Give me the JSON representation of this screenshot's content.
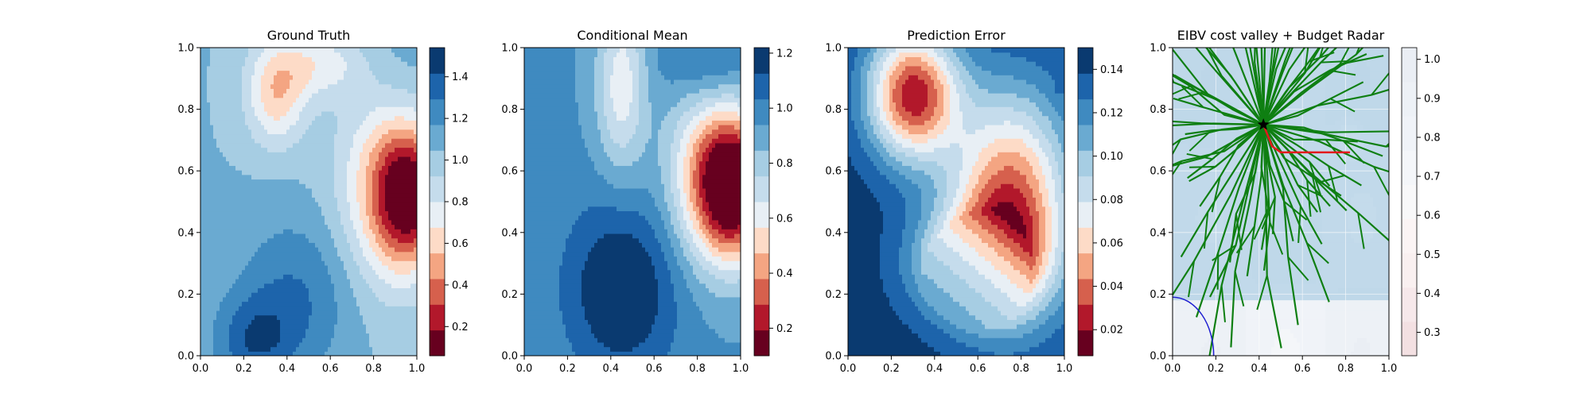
{
  "chart_data": [
    {
      "type": "heatmap",
      "title": "Ground Truth",
      "xlabel": "",
      "ylabel": "",
      "xlim": [
        0,
        1
      ],
      "ylim": [
        0,
        1
      ],
      "xticks": [
        "0.0",
        "0.2",
        "0.4",
        "0.6",
        "0.8",
        "1.0"
      ],
      "yticks": [
        "0.0",
        "0.2",
        "0.4",
        "0.6",
        "0.8",
        "1.0"
      ],
      "colormap": "RdBu (filled contour)",
      "colorbar": {
        "range": [
          0.06,
          1.54
        ],
        "ticks": [
          {
            "v": 0.2,
            "label": "0.2"
          },
          {
            "v": 0.4,
            "label": "0.4"
          },
          {
            "v": 0.6,
            "label": "0.6"
          },
          {
            "v": 0.8,
            "label": "0.8"
          },
          {
            "v": 1.0,
            "label": "1.0"
          },
          {
            "v": 1.2,
            "label": "1.2"
          },
          {
            "v": 1.4,
            "label": "1.4"
          }
        ],
        "levels": [
          "#67001f",
          "#b2182b",
          "#d6604d",
          "#f4a582",
          "#fddbc7",
          "#e8eff5",
          "#c5dcec",
          "#a6cde3",
          "#6aaad1",
          "#3f8ac0",
          "#1d64ab",
          "#0a3a70"
        ]
      },
      "grid": false,
      "legend": "none"
    },
    {
      "type": "heatmap",
      "title": "Conditional Mean",
      "xlabel": "",
      "ylabel": "",
      "xlim": [
        0,
        1
      ],
      "ylim": [
        0,
        1
      ],
      "xticks": [
        "0.0",
        "0.2",
        "0.4",
        "0.6",
        "0.8",
        "1.0"
      ],
      "yticks": [
        "0.0",
        "0.2",
        "0.4",
        "0.6",
        "0.8",
        "1.0"
      ],
      "colormap": "RdBu (filled contour)",
      "colorbar": {
        "range": [
          0.1,
          1.22
        ],
        "ticks": [
          {
            "v": 0.2,
            "label": "0.2"
          },
          {
            "v": 0.4,
            "label": "0.4"
          },
          {
            "v": 0.6,
            "label": "0.6"
          },
          {
            "v": 0.8,
            "label": "0.8"
          },
          {
            "v": 1.0,
            "label": "1.0"
          },
          {
            "v": 1.2,
            "label": "1.2"
          }
        ],
        "levels": [
          "#67001f",
          "#b2182b",
          "#d6604d",
          "#f4a582",
          "#fddbc7",
          "#e8eff5",
          "#c5dcec",
          "#a6cde3",
          "#6aaad1",
          "#3f8ac0",
          "#1d64ab",
          "#0a3a70"
        ]
      },
      "grid": false,
      "legend": "none"
    },
    {
      "type": "heatmap",
      "title": "Prediction Error",
      "xlabel": "",
      "ylabel": "",
      "xlim": [
        0,
        1
      ],
      "ylim": [
        0,
        1
      ],
      "xticks": [
        "0.0",
        "0.2",
        "0.4",
        "0.6",
        "0.8",
        "1.0"
      ],
      "yticks": [
        "0.0",
        "0.2",
        "0.4",
        "0.6",
        "0.8",
        "1.0"
      ],
      "colormap": "RdBu (filled contour)",
      "colorbar": {
        "range": [
          0.008,
          0.15
        ],
        "ticks": [
          {
            "v": 0.02,
            "label": "0.02"
          },
          {
            "v": 0.04,
            "label": "0.04"
          },
          {
            "v": 0.06,
            "label": "0.06"
          },
          {
            "v": 0.08,
            "label": "0.08"
          },
          {
            "v": 0.1,
            "label": "0.10"
          },
          {
            "v": 0.12,
            "label": "0.12"
          },
          {
            "v": 0.14,
            "label": "0.14"
          }
        ],
        "levels": [
          "#67001f",
          "#b2182b",
          "#d6604d",
          "#f4a582",
          "#fddbc7",
          "#e8eff5",
          "#c5dcec",
          "#a6cde3",
          "#6aaad1",
          "#3f8ac0",
          "#1d64ab",
          "#0a3a70"
        ]
      },
      "grid": false,
      "legend": "none"
    },
    {
      "type": "heatmap",
      "title": "EIBV cost valley + Budget Radar",
      "xlabel": "",
      "ylabel": "",
      "xlim": [
        0,
        1
      ],
      "ylim": [
        0,
        1
      ],
      "xticks": [
        "0.0",
        "0.2",
        "0.4",
        "0.6",
        "0.8",
        "1.0"
      ],
      "yticks": [
        "0.0",
        "0.2",
        "0.4",
        "0.6",
        "0.8",
        "1.0"
      ],
      "colormap": "RdBu (filled contour, faded)",
      "colorbar": {
        "range": [
          0.24,
          1.03
        ],
        "ticks": [
          {
            "v": 0.3,
            "label": "0.3"
          },
          {
            "v": 0.4,
            "label": "0.4"
          },
          {
            "v": 0.5,
            "label": "0.5"
          },
          {
            "v": 0.6,
            "label": "0.6"
          },
          {
            "v": 0.7,
            "label": "0.7"
          },
          {
            "v": 0.8,
            "label": "0.8"
          },
          {
            "v": 0.9,
            "label": "0.9"
          },
          {
            "v": 1.0,
            "label": "1.0"
          }
        ],
        "levels": [
          "#f3e0e2",
          "#f6e8ea",
          "#f9f0f0",
          "#fbf4f4",
          "#f8f8f9",
          "#f4f6f9",
          "#f0f3f8",
          "#edf1f6",
          "#eaeef4"
        ]
      },
      "current_location": [
        0.42,
        0.75
      ],
      "best_path": [
        [
          0.42,
          0.75
        ],
        [
          0.46,
          0.68
        ],
        [
          0.5,
          0.66
        ],
        [
          0.62,
          0.66
        ],
        [
          0.72,
          0.66
        ],
        [
          0.82,
          0.66
        ]
      ],
      "budget_radar": {
        "center": [
          0.0,
          0.0
        ],
        "radius": 0.19
      },
      "candidate_count": 70,
      "grid": true,
      "legend": "none",
      "colors": {
        "candidates": "#0f7f12",
        "best_path": "#e31a1c",
        "radar": "#1f1fd1",
        "star": "#000000"
      }
    }
  ]
}
